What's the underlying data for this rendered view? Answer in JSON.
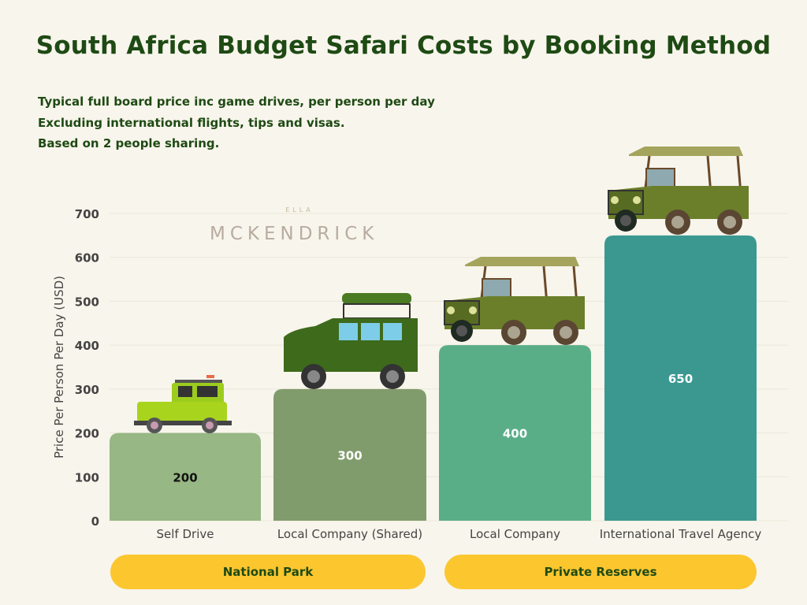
{
  "chart_data": {
    "type": "bar",
    "title": "South Africa Budget Safari Costs by Booking Method",
    "subtitle": [
      "Typical full board price inc game drives, per person per day",
      "Excluding international flights, tips and visas.",
      "Based on 2 people sharing."
    ],
    "ylabel": "Price Per Person Per Day (USD)",
    "xlabel": "",
    "ylim": [
      0,
      700
    ],
    "yticks": [
      0,
      100,
      200,
      300,
      400,
      500,
      600,
      700
    ],
    "grid": true,
    "categories": [
      "Self Drive",
      "Local Company (Shared)",
      "Local Company",
      "International Travel Agency"
    ],
    "values": [
      200,
      300,
      400,
      650
    ],
    "data_labels": [
      "200",
      "300",
      "400",
      "650"
    ],
    "colors": [
      "#97b784",
      "#819c6c",
      "#5aae87",
      "#3a9891"
    ],
    "label_colors": [
      "#111111",
      "#ffffff",
      "#ffffff",
      "#ffffff"
    ],
    "groups": [
      {
        "label": "National Park",
        "categories": [
          "Self Drive",
          "Local Company (Shared)"
        ]
      },
      {
        "label": "Private Reserves",
        "categories": [
          "Local Company",
          "International Travel Agency"
        ]
      }
    ],
    "group_color": "#fcc62f"
  },
  "watermark": {
    "top": "ELLA",
    "name": "MCKENDRICK"
  },
  "icons": [
    "lime-jeep-icon",
    "green-suv-icon",
    "safari-vehicle-icon",
    "safari-vehicle-icon"
  ]
}
